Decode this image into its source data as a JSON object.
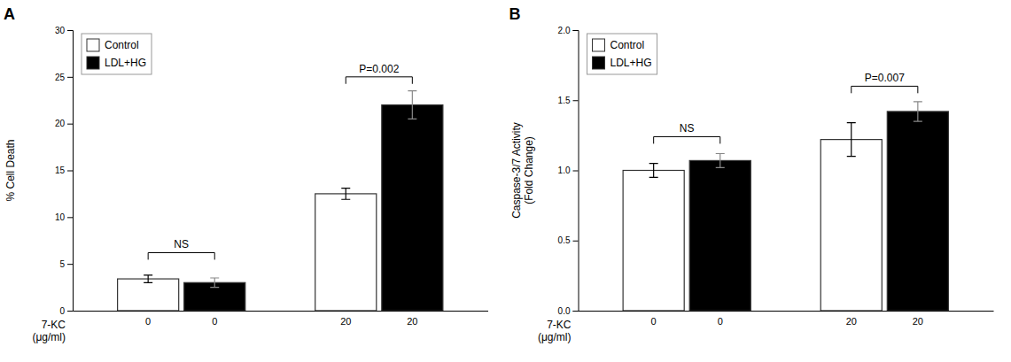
{
  "chart_data": [
    {
      "type": "bar",
      "title": "A",
      "xlabel": "7-KC\n(μg/ml)",
      "ylabel": "% Cell Death",
      "categories": [
        "0",
        "20"
      ],
      "series": [
        {
          "name": "Control",
          "color": "white",
          "values": [
            3.4,
            12.5
          ],
          "errors": [
            0.4,
            0.6
          ]
        },
        {
          "name": "LDL+HG",
          "color": "black",
          "values": [
            3.0,
            22.0
          ],
          "errors": [
            0.5,
            1.5
          ]
        }
      ],
      "ylim": [
        0,
        30
      ],
      "yticks": [
        0,
        5,
        10,
        15,
        20,
        25,
        30
      ],
      "grid": false,
      "legend": "upper left",
      "annotations": [
        {
          "text": "NS",
          "category": "0",
          "y": 6.2
        },
        {
          "text": "P=0.002",
          "category": "20",
          "y": 25.0
        }
      ]
    },
    {
      "type": "bar",
      "title": "B",
      "xlabel": "7-KC\n(μg/ml)",
      "ylabel": "Caspase-3/7 Activity\n(Fold Change)",
      "categories": [
        "0",
        "20"
      ],
      "series": [
        {
          "name": "Control",
          "color": "white",
          "values": [
            1.0,
            1.22
          ],
          "errors": [
            0.05,
            0.12
          ]
        },
        {
          "name": "LDL+HG",
          "color": "black",
          "values": [
            1.07,
            1.42
          ],
          "errors": [
            0.05,
            0.07
          ]
        }
      ],
      "ylim": [
        0,
        2
      ],
      "yticks": [
        {
          "value": 0,
          "label": "0.0"
        },
        0.5,
        {
          "value": 1.0,
          "label": "1.0"
        },
        1.5,
        {
          "value": 2.0,
          "label": "2.0"
        }
      ],
      "grid": false,
      "legend": "upper left",
      "annotations": [
        {
          "text": "NS",
          "category": "0",
          "y": 1.24
        },
        {
          "text": "P=0.007",
          "category": "20",
          "y": 1.6
        }
      ]
    }
  ]
}
